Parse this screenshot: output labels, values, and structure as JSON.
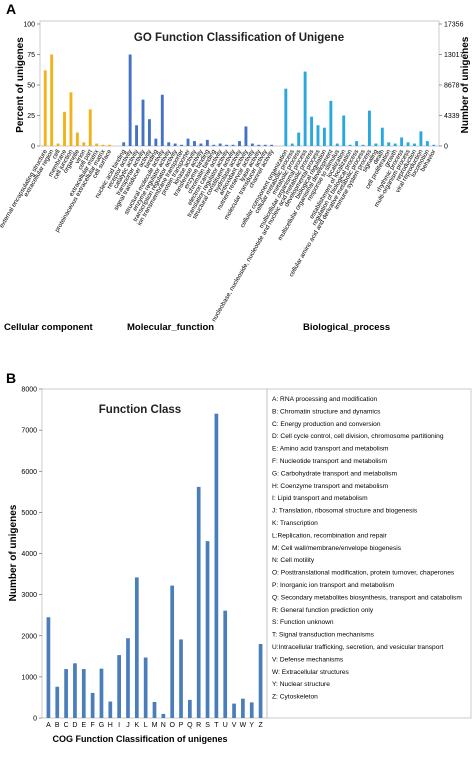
{
  "panel_a": {
    "label": "A",
    "chart_data": {
      "type": "bar",
      "title": "GO Function Classification of Unigene",
      "ylabel": "Percent of unigenes",
      "y2label": "Number of unigenes",
      "ylim": [
        0,
        100
      ],
      "yticks": [
        "0",
        "25",
        "50",
        "75",
        "100"
      ],
      "y2ticks": [
        "0",
        "4339",
        "8678",
        "13017",
        "17356"
      ],
      "grid": false,
      "groups": [
        {
          "name": "Cellular component",
          "color": "#f2b21b",
          "categories": [
            "external encapsulating structure",
            "extracellular region",
            "cell",
            "membrane",
            "cell junction",
            "organelle",
            "virion",
            "cell part",
            "extracellular matrix",
            "proteinaceous extracellular matrix",
            "cell surface"
          ],
          "values": [
            62,
            75,
            2,
            28,
            44,
            11,
            3,
            30,
            2,
            1,
            1
          ]
        },
        {
          "name": "Molecular_function",
          "color": "#4472c4",
          "categories": [
            "nucleic acid binding",
            "receptor activity",
            "catalytic activity",
            "transporter activity",
            "signal transducer activity",
            "binding",
            "structural molecule activity",
            "enzyme regulator activity",
            "transcription regulator activity",
            "ion transmembrane transporter",
            "protein transporter",
            "kinase activity",
            "transferase activity",
            "enzyme binding",
            "chromatin binding",
            "electron carrier activity",
            "translation regulator activity",
            "structural constituent activity",
            "hydrolase activity",
            "antioxidant activity",
            "nutrient reservoir activity",
            "lyase activity",
            "molecular transducer activity",
            "channel activity"
          ],
          "values": [
            3,
            75,
            17,
            38,
            22,
            6,
            42,
            3,
            2,
            1,
            6,
            4,
            2,
            5,
            1,
            2,
            1,
            1,
            4,
            16,
            2,
            1,
            1,
            1
          ]
        },
        {
          "name": "Biological_process",
          "color": "#29a8df",
          "categories": [
            "cellular component organization",
            "cellular metabolic process",
            "metabolic process",
            "multicellular organismal process",
            "nucleobase, nucleoside, nucleotide and nucleic acid metabolic process",
            "developmental process",
            "biological regulation",
            "multicellular organismal development",
            "response to stimulus",
            "localization",
            "establishment of localization",
            "regulation of biological process",
            "cellular amino acid and derivative metabolic process",
            "immune system process",
            "signaling",
            "death",
            "cell proliferation",
            "growth",
            "rhythmic process",
            "multi-organism process",
            "reproduction",
            "viral reproduction",
            "locomotion",
            "behavior"
          ],
          "values": [
            47,
            2,
            11,
            61,
            24,
            17,
            15,
            37,
            2,
            25,
            1,
            4,
            1,
            29,
            2,
            15,
            3,
            2,
            7,
            3,
            2,
            12,
            4,
            1
          ]
        }
      ]
    }
  },
  "panel_b": {
    "label": "B",
    "chart_data": {
      "type": "bar",
      "title": "Function Class",
      "xlabel": "COG Function Classification of unigenes",
      "ylabel": "Number of unigenes",
      "ylim": [
        0,
        8000
      ],
      "yticks": [
        "0",
        "1000",
        "2000",
        "3000",
        "4000",
        "5000",
        "6000",
        "7000",
        "8000"
      ],
      "color": "#4a7ebb",
      "categories": [
        "A",
        "B",
        "C",
        "D",
        "E",
        "F",
        "G",
        "H",
        "I",
        "J",
        "K",
        "L",
        "M",
        "N",
        "O",
        "P",
        "Q",
        "R",
        "S",
        "T",
        "U",
        "V",
        "W",
        "Y",
        "Z"
      ],
      "values": [
        2450,
        760,
        1190,
        1330,
        1190,
        610,
        1200,
        400,
        1530,
        1940,
        3420,
        1470,
        390,
        100,
        3220,
        1910,
        440,
        5620,
        4300,
        7400,
        2610,
        350,
        470,
        380,
        1800
      ],
      "legend": [
        "A: RNA processing and modification",
        "B: Chromatin structure and dynamics",
        "C: Energy production and conversion",
        "D: Cell cycle control, cell division, chromosome partitioning",
        "E: Amino acid transport and metabolism",
        "F: Nucleotide transport and metabolism",
        "G: Carbohydrate transport and metabolism",
        "H: Coenzyme transport and metabolism",
        "I: Lipid transport and metabolism",
        "J: Translation, ribosomal structure and biogenesis",
        "K: Transcription",
        "L:Replication, recombination and repair",
        "M: Cell wall/membrane/envelope biogenesis",
        "N: Cell motility",
        "O: Posttranslational modification, protein turnover, chaperones",
        "P: Inorganic ion transport and metabolism",
        "Q: Secondary metabolites biosynthesis, transport and catabolism",
        "R: General function prediction only",
        "S: Function unknown",
        "T: Signal transduction mechanisms",
        "U:Intracellular trafficking, secretion, and vesicular transport",
        "V: Defense mechanisms",
        "W: Extracellular structures",
        "Y: Nuclear structure",
        "Z: Cytoskeleton"
      ]
    }
  }
}
